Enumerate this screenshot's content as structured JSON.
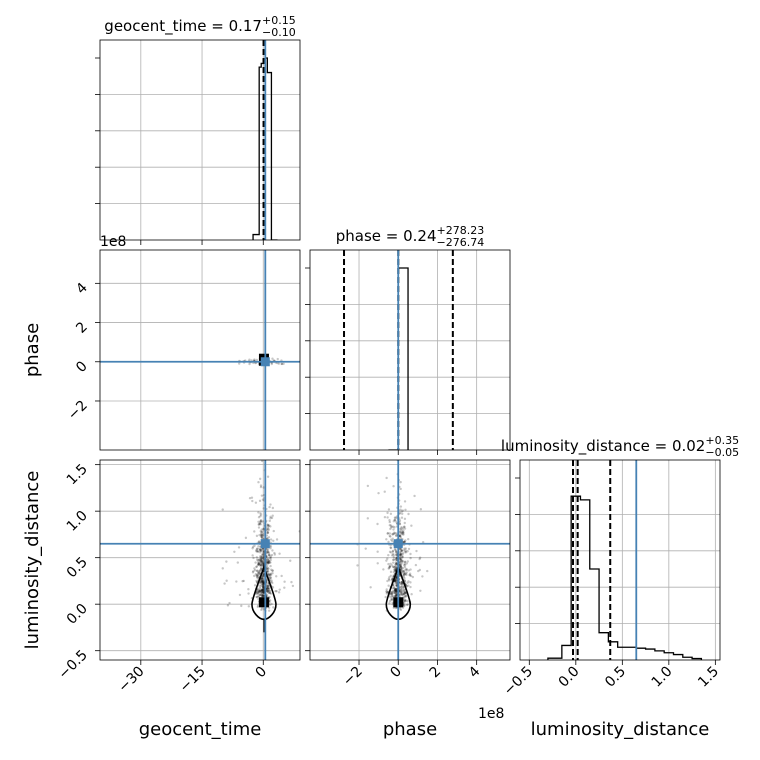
{
  "chart_data": {
    "type": "corner",
    "parameters": [
      "geocent_time",
      "phase",
      "luminosity_distance"
    ],
    "titles": {
      "geocent_time": {
        "text": "geocent_time = 0.17",
        "sup": "+0.15",
        "sub": "−0.10"
      },
      "phase": {
        "text": "phase = 0.24",
        "sup": "+278.23",
        "sub": "−276.74"
      },
      "luminosity_distance": {
        "text": "luminosity_distance = 0.02",
        "sup": "+0.35",
        "sub": "−0.05"
      }
    },
    "axis_labels": {
      "x": [
        "geocent_time",
        "phase",
        "luminosity_distance"
      ],
      "y": [
        "phase",
        "luminosity_distance"
      ]
    },
    "offset_texts": [
      "1e8",
      "1e8"
    ],
    "ranges": {
      "geocent_time": [
        -40,
        9
      ],
      "phase": [
        -450000000,
        570000000
      ],
      "luminosity_distance": [
        -0.6,
        1.55
      ]
    },
    "ticks": {
      "geocent_time": {
        "values": [
          -30,
          -15,
          0
        ],
        "labels": [
          "−30",
          "−15",
          "0"
        ]
      },
      "phase": {
        "values": [
          -200000000,
          0,
          200000000,
          400000000
        ],
        "labels": [
          "−2",
          "0",
          "2",
          "4"
        ]
      },
      "luminosity_distance": {
        "values": [
          -0.5,
          0.0,
          0.5,
          1.0,
          1.5
        ],
        "labels": [
          "−0.5",
          "0.0",
          "0.5",
          "1.0",
          "1.5"
        ]
      }
    },
    "truths": {
      "geocent_time": 0.5,
      "phase": 0,
      "luminosity_distance": 0.65
    },
    "quantiles": {
      "geocent_time": [
        0.07,
        0.17,
        0.32
      ],
      "phase": [
        -276500000,
        240000,
        278470000
      ],
      "luminosity_distance": [
        -0.03,
        0.02,
        0.37
      ]
    },
    "histograms": {
      "geocent_time": {
        "edges": [
          -2.5,
          -1,
          -0.5,
          0,
          0.5,
          1,
          2,
          3.5
        ],
        "counts": [
          0.03,
          0.95,
          0.97,
          0.99,
          1.0,
          0.92,
          0.0
        ]
      },
      "phase": {
        "edges": [
          -50000000,
          0,
          50000000
        ],
        "counts": [
          0.0,
          1.0
        ]
      },
      "luminosity_distance": {
        "edges": [
          -0.3,
          -0.15,
          -0.05,
          0.05,
          0.15,
          0.25,
          0.35,
          0.45,
          0.55,
          0.65,
          0.75,
          0.85,
          0.95,
          1.05,
          1.15,
          1.25,
          1.35
        ],
        "counts": [
          0.01,
          0.08,
          0.9,
          0.88,
          0.5,
          0.15,
          0.1,
          0.07,
          0.07,
          0.065,
          0.06,
          0.05,
          0.04,
          0.03,
          0.015,
          0.008
        ]
      }
    },
    "grid": true,
    "truth_color": "#4682b4",
    "line_color": "#000000",
    "grid_color": "#b0b0b0"
  }
}
